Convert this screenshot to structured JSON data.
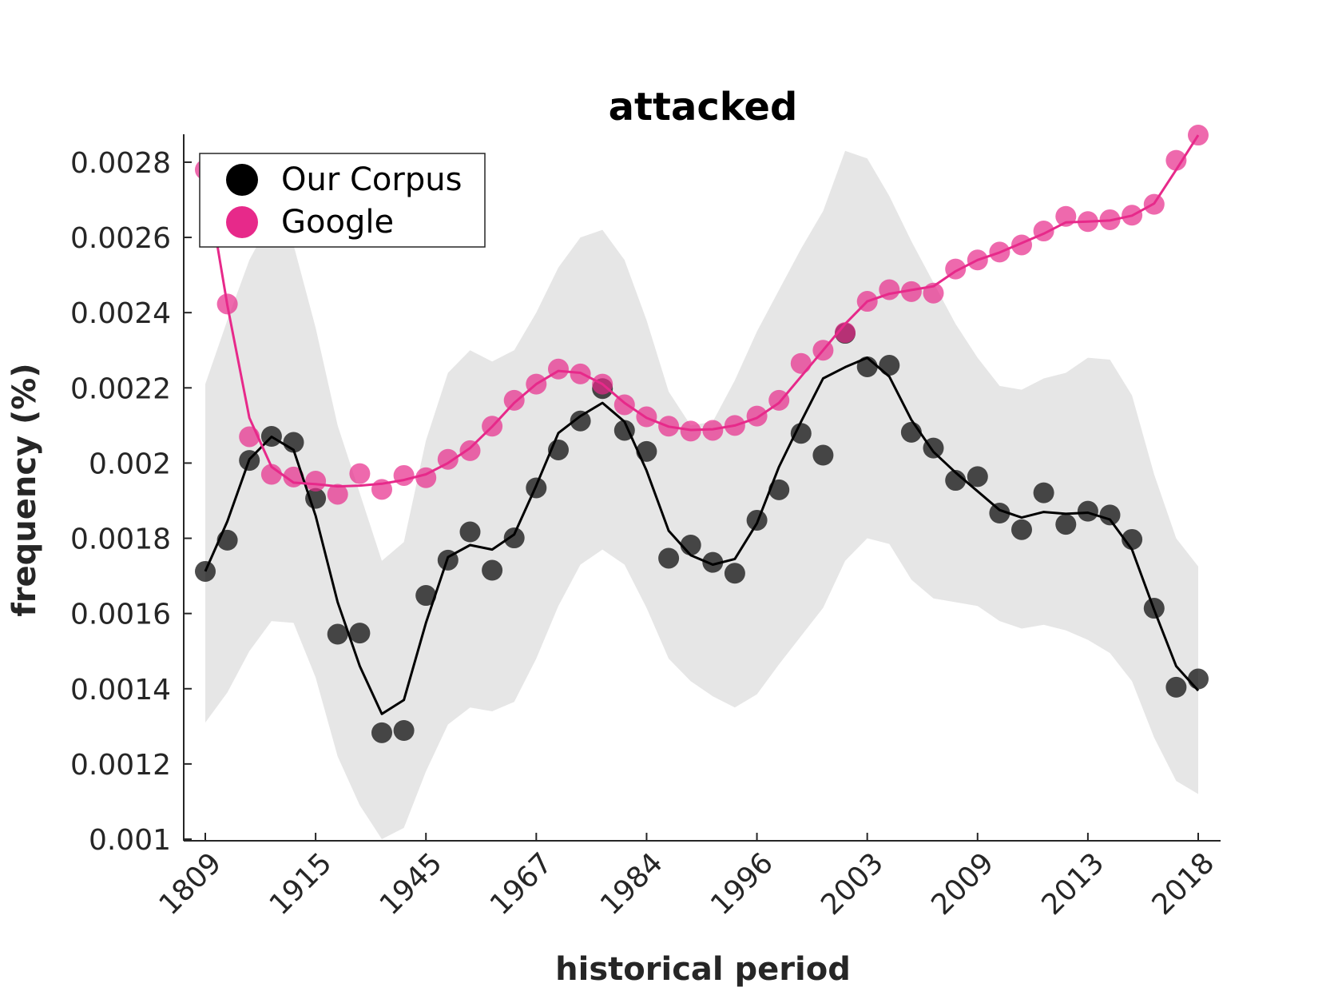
{
  "chart_data": {
    "type": "line",
    "title": "attacked",
    "xlabel": "historical period",
    "ylabel": "frequency (%)",
    "x_tick_labels": [
      "1809",
      "1915",
      "1945",
      "1967",
      "1984",
      "1996",
      "2003",
      "2009",
      "2013",
      "2018"
    ],
    "y_tick_labels": [
      "0.001",
      "0.0012",
      "0.0014",
      "0.0016",
      "0.0018",
      "0.002",
      "0.0022",
      "0.0024",
      "0.0026",
      "0.0028"
    ],
    "ylim": [
      0.001,
      0.00287
    ],
    "grid": false,
    "legend_position": "top-left",
    "series": [
      {
        "name": "Our Corpus",
        "color": "#000000",
        "points": [
          0.001712,
          0.001795,
          0.002007,
          0.002071,
          0.002055,
          0.001906,
          0.001545,
          0.001548,
          0.001283,
          0.001289,
          0.001648,
          0.001742,
          0.001817,
          0.001715,
          0.001801,
          0.001934,
          0.002035,
          0.002112,
          0.002198,
          0.002087,
          0.002031,
          0.001747,
          0.001782,
          0.001736,
          0.001707,
          0.001848,
          0.001929,
          0.002079,
          0.002021,
          0.002345,
          0.002256,
          0.00226,
          0.002082,
          0.00204,
          0.001954,
          0.001964,
          0.001867,
          0.001823,
          0.001921,
          0.001837,
          0.001872,
          0.001862,
          0.001797,
          0.001614,
          0.001404,
          0.001426
        ],
        "smooth": [
          0.001712,
          0.001845,
          0.00201,
          0.00207,
          0.002035,
          0.00186,
          0.00163,
          0.00146,
          0.001333,
          0.00137,
          0.001575,
          0.00175,
          0.001782,
          0.00177,
          0.00181,
          0.00194,
          0.00208,
          0.002125,
          0.00216,
          0.00211,
          0.00198,
          0.00182,
          0.001755,
          0.00173,
          0.001745,
          0.00184,
          0.00199,
          0.00211,
          0.002225,
          0.002255,
          0.00228,
          0.00223,
          0.002115,
          0.00203,
          0.001975,
          0.001925,
          0.001875,
          0.001855,
          0.00187,
          0.001865,
          0.001868,
          0.00185,
          0.00177,
          0.00161,
          0.00146,
          0.001395
        ],
        "band_upper": [
          0.00221,
          0.00238,
          0.00254,
          0.00265,
          0.00258,
          0.00236,
          0.0021,
          0.00192,
          0.00174,
          0.00179,
          0.00206,
          0.00224,
          0.0023,
          0.00227,
          0.0023,
          0.0024,
          0.00252,
          0.0026,
          0.00262,
          0.00254,
          0.00238,
          0.00219,
          0.0021,
          0.00211,
          0.00222,
          0.00235,
          0.00246,
          0.00257,
          0.00267,
          0.00283,
          0.00281,
          0.00271,
          0.00259,
          0.00248,
          0.00237,
          0.00228,
          0.002205,
          0.002195,
          0.002225,
          0.00224,
          0.00228,
          0.002275,
          0.00218,
          0.00197,
          0.0018,
          0.001725
        ],
        "band_lower": [
          0.00131,
          0.00139,
          0.0015,
          0.00158,
          0.001575,
          0.00143,
          0.00122,
          0.00109,
          0.001,
          0.00103,
          0.00118,
          0.001305,
          0.00135,
          0.00134,
          0.001365,
          0.00148,
          0.00162,
          0.00173,
          0.00177,
          0.00173,
          0.001615,
          0.00148,
          0.00142,
          0.00138,
          0.00135,
          0.001385,
          0.001465,
          0.00154,
          0.001615,
          0.00174,
          0.0018,
          0.001785,
          0.00169,
          0.00164,
          0.00163,
          0.00162,
          0.00158,
          0.00156,
          0.00157,
          0.001555,
          0.00153,
          0.001495,
          0.00142,
          0.00127,
          0.001155,
          0.00112
        ]
      },
      {
        "name": "Google",
        "color": "#e7298a",
        "points": [
          0.00278,
          0.002423,
          0.00207,
          0.00197,
          0.001963,
          0.001952,
          0.001917,
          0.001972,
          0.00193,
          0.001967,
          0.001961,
          0.00201,
          0.002033,
          0.002098,
          0.002167,
          0.00221,
          0.00225,
          0.002237,
          0.00221,
          0.002155,
          0.002123,
          0.002098,
          0.002085,
          0.002087,
          0.0021,
          0.002125,
          0.002167,
          0.002265,
          0.0023,
          0.002347,
          0.00243,
          0.002461,
          0.002456,
          0.002452,
          0.002516,
          0.00254,
          0.002561,
          0.00258,
          0.002617,
          0.002656,
          0.002642,
          0.002647,
          0.002659,
          0.002688,
          0.002805,
          0.002872
        ],
        "smooth": [
          0.00277,
          0.00242,
          0.00212,
          0.00199,
          0.001948,
          0.001944,
          0.001938,
          0.00194,
          0.001945,
          0.001955,
          0.00197,
          0.002,
          0.00204,
          0.002097,
          0.00216,
          0.00221,
          0.002245,
          0.00224,
          0.00221,
          0.00216,
          0.00212,
          0.002097,
          0.002088,
          0.00209,
          0.0021,
          0.00212,
          0.00216,
          0.00223,
          0.0023,
          0.00237,
          0.00243,
          0.00245,
          0.00246,
          0.00247,
          0.00251,
          0.00254,
          0.00256,
          0.002585,
          0.00261,
          0.00264,
          0.002642,
          0.002645,
          0.002658,
          0.00269,
          0.00278,
          0.002872
        ]
      }
    ]
  }
}
